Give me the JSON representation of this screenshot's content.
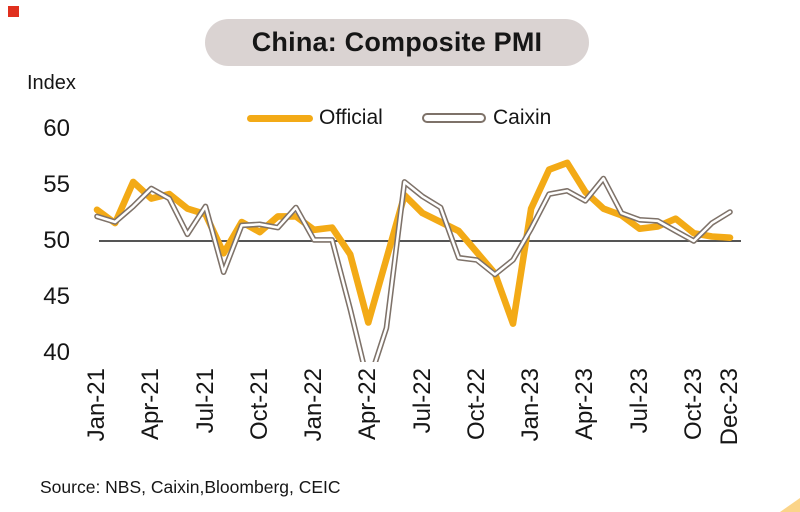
{
  "title": {
    "text": "China: Composite PMI"
  },
  "source": "Source: NBS, Caixin,Bloomberg, CEIC",
  "colors": {
    "official_line": "#F3AA16",
    "caixin_line": "#7E7269",
    "caixin_line_core": "#FFFFFF",
    "reference_line": "#3D3D3D",
    "title_pill_bg": "#DAD3D2",
    "text": "#161616",
    "red_square": "#E0301E",
    "corner_triangle": "#FBD489"
  },
  "chart_data": {
    "type": "line",
    "title": "China: Composite PMI",
    "ylabel": "Index",
    "xlabel": "",
    "ylim": [
      39.3,
      60.5
    ],
    "y_ticks": [
      60,
      55,
      50,
      45,
      40
    ],
    "reference_line": 50,
    "grid": false,
    "legend_position": "top",
    "x": [
      "Jan-21",
      "Feb-21",
      "Mar-21",
      "Apr-21",
      "May-21",
      "Jun-21",
      "Jul-21",
      "Aug-21",
      "Sep-21",
      "Oct-21",
      "Nov-21",
      "Dec-21",
      "Jan-22",
      "Feb-22",
      "Mar-22",
      "Apr-22",
      "May-22",
      "Jun-22",
      "Jul-22",
      "Aug-22",
      "Sep-22",
      "Oct-22",
      "Nov-22",
      "Dec-22",
      "Jan-23",
      "Feb-23",
      "Mar-23",
      "Apr-23",
      "May-23",
      "Jun-23",
      "Jul-23",
      "Aug-23",
      "Sep-23",
      "Oct-23",
      "Nov-23",
      "Dec-23"
    ],
    "x_tick_labels": [
      "Jan-21",
      "Apr-21",
      "Jul-21",
      "Oct-21",
      "Jan-22",
      "Apr-22",
      "Jul-22",
      "Oct-22",
      "Jan-23",
      "Apr-23",
      "Jul-23",
      "Oct-23",
      "Dec-23"
    ],
    "series": [
      {
        "name": "Official",
        "style": "thick-solid",
        "values": [
          52.8,
          51.6,
          55.3,
          53.8,
          54.2,
          52.9,
          52.4,
          48.9,
          51.7,
          50.8,
          52.2,
          52.2,
          51.0,
          51.2,
          48.8,
          42.7,
          48.4,
          54.1,
          52.5,
          51.7,
          50.9,
          49.0,
          47.1,
          42.6,
          52.9,
          56.4,
          57.0,
          54.4,
          52.9,
          52.3,
          51.1,
          51.3,
          52.0,
          50.7,
          50.4,
          50.3
        ]
      },
      {
        "name": "Caixin",
        "style": "double-outline",
        "values": [
          52.2,
          51.7,
          53.1,
          54.7,
          53.8,
          50.6,
          53.1,
          47.2,
          51.4,
          51.5,
          51.2,
          53.0,
          50.1,
          50.1,
          43.9,
          37.2,
          42.2,
          55.3,
          54.0,
          53.0,
          48.5,
          48.3,
          47.0,
          48.3,
          51.1,
          54.2,
          54.5,
          53.6,
          55.6,
          52.5,
          51.9,
          51.8,
          50.9,
          50.0,
          51.6,
          52.6
        ]
      }
    ]
  }
}
